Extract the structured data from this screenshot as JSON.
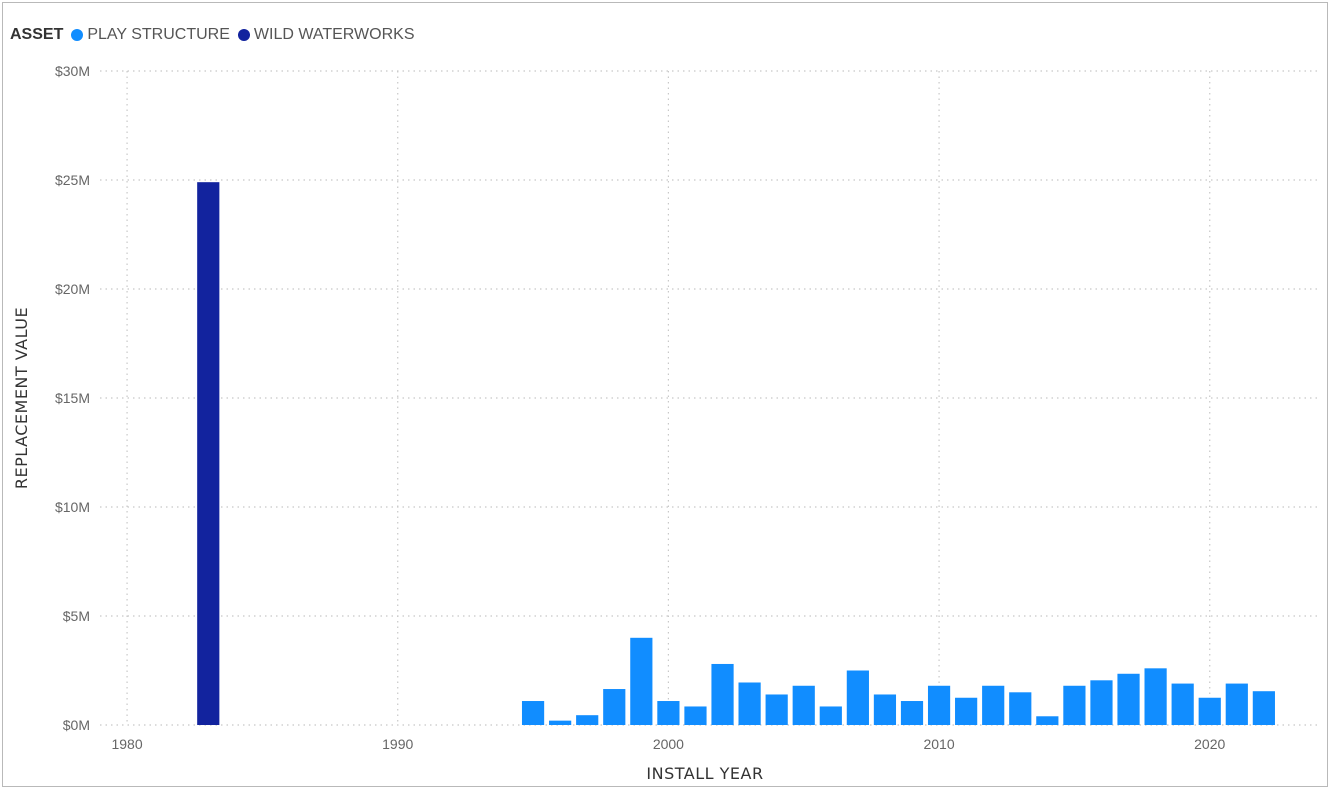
{
  "chart_data": {
    "type": "bar",
    "legend": {
      "title": "ASSET",
      "placement": "top-left"
    },
    "xlabel": "INSTALL YEAR",
    "ylabel": "REPLACEMENT VALUE",
    "xlim": [
      1979,
      2024
    ],
    "ylim": [
      0,
      30
    ],
    "x_ticks": [
      1980,
      1990,
      2000,
      2010,
      2020
    ],
    "y_ticks": [
      {
        "value": 0,
        "label": "$0M"
      },
      {
        "value": 5,
        "label": "$5M"
      },
      {
        "value": 10,
        "label": "$10M"
      },
      {
        "value": 15,
        "label": "$15M"
      },
      {
        "value": 20,
        "label": "$20M"
      },
      {
        "value": 25,
        "label": "$25M"
      },
      {
        "value": 30,
        "label": "$30M"
      }
    ],
    "grid": true,
    "series": [
      {
        "name": "PLAY STRUCTURE",
        "color": "#118DFF",
        "points": [
          {
            "x": 1995,
            "y": 1.1
          },
          {
            "x": 1996,
            "y": 0.2
          },
          {
            "x": 1997,
            "y": 0.45
          },
          {
            "x": 1998,
            "y": 1.65
          },
          {
            "x": 1999,
            "y": 4.0
          },
          {
            "x": 2000,
            "y": 1.1
          },
          {
            "x": 2001,
            "y": 0.85
          },
          {
            "x": 2002,
            "y": 2.8
          },
          {
            "x": 2003,
            "y": 1.95
          },
          {
            "x": 2004,
            "y": 1.4
          },
          {
            "x": 2005,
            "y": 1.8
          },
          {
            "x": 2006,
            "y": 0.85
          },
          {
            "x": 2007,
            "y": 2.5
          },
          {
            "x": 2008,
            "y": 1.4
          },
          {
            "x": 2009,
            "y": 1.1
          },
          {
            "x": 2010,
            "y": 1.8
          },
          {
            "x": 2011,
            "y": 1.25
          },
          {
            "x": 2012,
            "y": 1.8
          },
          {
            "x": 2013,
            "y": 1.5
          },
          {
            "x": 2014,
            "y": 0.4
          },
          {
            "x": 2015,
            "y": 1.8
          },
          {
            "x": 2016,
            "y": 2.05
          },
          {
            "x": 2017,
            "y": 2.35
          },
          {
            "x": 2018,
            "y": 2.6
          },
          {
            "x": 2019,
            "y": 1.9
          },
          {
            "x": 2020,
            "y": 1.25
          },
          {
            "x": 2021,
            "y": 1.9
          },
          {
            "x": 2022,
            "y": 1.55
          }
        ]
      },
      {
        "name": "WILD WATERWORKS",
        "color": "#12239E",
        "points": [
          {
            "x": 1983,
            "y": 24.9
          }
        ]
      }
    ]
  }
}
